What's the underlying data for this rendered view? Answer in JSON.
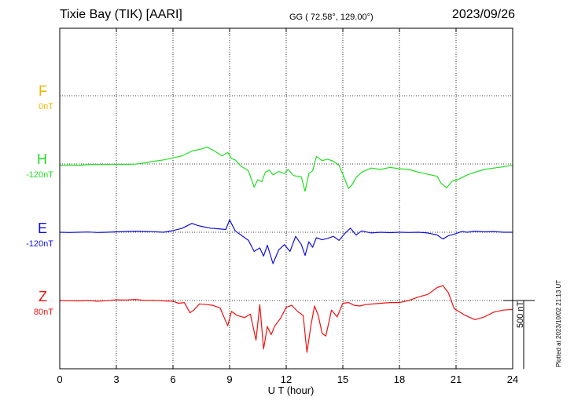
{
  "header": {
    "station": "Tixie Bay (TIK)  [AARI]",
    "coords": "GG ( 72.58°, 129.00°)",
    "date": "2023/09/26"
  },
  "footer": {
    "scale_label": "500 nT",
    "plotted_label": "Plotted at 2023/10/02 21:13 UT"
  },
  "chart_data": {
    "type": "line",
    "xlabel": "U T (hour)",
    "xlim": [
      0,
      24
    ],
    "xticks": [
      0,
      3,
      6,
      9,
      12,
      15,
      18,
      21,
      24
    ],
    "grid": true,
    "scale_bar_nT": 500,
    "series": [
      {
        "name": "F",
        "offset_label": "0nT",
        "color": "#f0b400",
        "values": []
      },
      {
        "name": "H",
        "offset_label": "-120nT",
        "color": "#22dd22",
        "x": [
          0,
          0.5,
          1,
          1.5,
          2,
          2.5,
          3,
          3.5,
          4,
          4.5,
          5,
          5.5,
          6,
          6.5,
          7,
          7.5,
          7.8,
          8.2,
          8.6,
          8.9,
          9.1,
          9.3,
          9.6,
          10,
          10.3,
          10.5,
          10.7,
          10.9,
          11.1,
          11.3,
          11.6,
          11.9,
          12.1,
          12.4,
          12.8,
          13.0,
          13.2,
          13.4,
          13.6,
          13.9,
          14.2,
          14.5,
          14.8,
          15.1,
          15.3,
          15.5,
          15.7,
          16.0,
          16.5,
          17,
          17.5,
          18,
          18.5,
          19,
          19.5,
          20,
          20.2,
          20.5,
          20.8,
          21,
          21.3,
          21.6,
          22,
          22.5,
          23,
          23.5,
          24
        ],
        "values": [
          -10,
          -8,
          -9,
          -5,
          -3,
          -4,
          -2,
          -3,
          -1,
          8,
          20,
          30,
          45,
          60,
          95,
          110,
          125,
          95,
          60,
          85,
          40,
          30,
          -15,
          -50,
          -170,
          -115,
          -130,
          -60,
          -45,
          -80,
          -55,
          -70,
          -40,
          -85,
          -95,
          -200,
          -70,
          -50,
          55,
          25,
          35,
          20,
          -10,
          -110,
          -180,
          -150,
          -100,
          -60,
          -30,
          -40,
          -25,
          -35,
          -40,
          -60,
          -75,
          -90,
          -140,
          -175,
          -125,
          -120,
          -100,
          -80,
          -60,
          -40,
          -30,
          -20,
          -10
        ]
      },
      {
        "name": "E",
        "offset_label": "-120nT",
        "color": "#1010dd",
        "x": [
          0,
          0.5,
          1,
          1.5,
          2,
          2.5,
          3,
          3.5,
          4,
          4.5,
          5,
          5.5,
          6,
          6.5,
          7,
          7.3,
          7.6,
          8,
          8.4,
          8.8,
          9.0,
          9.3,
          9.6,
          10,
          10.3,
          10.6,
          10.8,
          11.0,
          11.3,
          11.6,
          11.9,
          12.2,
          12.5,
          12.8,
          13.0,
          13.2,
          13.4,
          13.6,
          13.9,
          14.2,
          14.5,
          14.8,
          15.1,
          15.4,
          15.7,
          16,
          16.5,
          17,
          17.5,
          18,
          18.5,
          19,
          19.5,
          20,
          20.3,
          20.6,
          21,
          21.3,
          21.6,
          22,
          22.5,
          23,
          23.5,
          24
        ],
        "values": [
          0,
          -2,
          0,
          2,
          -2,
          0,
          3,
          5,
          8,
          6,
          4,
          0,
          12,
          30,
          65,
          50,
          40,
          30,
          25,
          20,
          90,
          10,
          -20,
          -60,
          -140,
          -115,
          -175,
          -95,
          -230,
          -130,
          -90,
          -140,
          -30,
          -90,
          -170,
          -70,
          -110,
          -40,
          -55,
          -45,
          -30,
          -60,
          -10,
          30,
          -20,
          10,
          -5,
          0,
          -3,
          0,
          -2,
          0,
          -5,
          -20,
          -50,
          -25,
          -10,
          5,
          0,
          8,
          3,
          5,
          0,
          0
        ]
      },
      {
        "name": "Z",
        "offset_label": "80nT",
        "color": "#ee1111",
        "x": [
          0,
          0.5,
          1,
          1.5,
          2,
          2.5,
          3,
          3.5,
          4,
          4.5,
          5,
          5.5,
          6,
          6.3,
          6.6,
          6.9,
          7.1,
          7.4,
          7.8,
          8.1,
          8.5,
          8.9,
          9.1,
          9.4,
          9.8,
          10.1,
          10.4,
          10.6,
          10.8,
          11.0,
          11.2,
          11.4,
          11.7,
          12,
          12.3,
          12.6,
          12.9,
          13.1,
          13.3,
          13.5,
          13.7,
          13.9,
          14.1,
          14.4,
          14.7,
          15.0,
          15.3,
          15.6,
          15.9,
          16.2,
          16.6,
          17,
          17.5,
          18,
          18.5,
          19,
          19.5,
          20,
          20.3,
          20.6,
          20.9,
          21.2,
          21.5,
          22,
          22.5,
          23,
          23.5,
          24
        ],
        "values": [
          0,
          -2,
          -3,
          0,
          -5,
          -2,
          5,
          3,
          8,
          0,
          2,
          -3,
          -5,
          -20,
          -15,
          -90,
          -70,
          -25,
          -30,
          -35,
          -55,
          -185,
          -80,
          -110,
          -125,
          -100,
          -290,
          -30,
          -355,
          -190,
          -250,
          -185,
          -130,
          -50,
          -35,
          -80,
          -110,
          -380,
          -190,
          -40,
          -110,
          -240,
          -260,
          -70,
          -120,
          -20,
          -15,
          -35,
          -40,
          -30,
          -25,
          -20,
          -15,
          -15,
          0,
          25,
          45,
          95,
          110,
          55,
          -60,
          -85,
          -110,
          -140,
          -120,
          -85,
          -70,
          -65
        ]
      }
    ]
  }
}
